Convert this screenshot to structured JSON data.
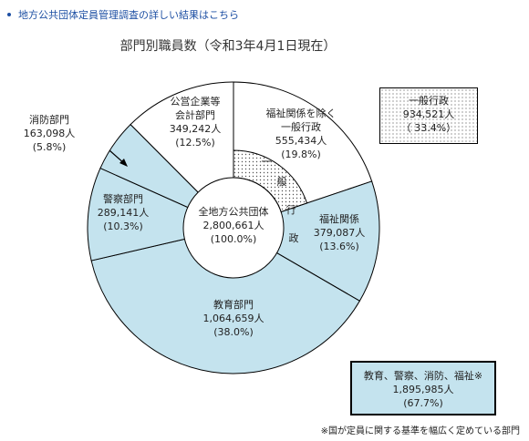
{
  "top_link": "地方公共団体定員管理調査の詳しい結果はこちら",
  "chart_data": {
    "type": "pie",
    "title": "部門別職員数（令和3年4月1日現在）",
    "center": {
      "label": "全地方公共団体",
      "value": "2,800,661人",
      "percent": "(100.0%)"
    },
    "unit": "人",
    "segments": [
      {
        "name": "福祉関係を除く一般行政",
        "value": 555434,
        "value_text": "555,434人",
        "percent_text": "(19.8%)",
        "group": "general"
      },
      {
        "name": "福祉関係",
        "value": 379087,
        "value_text": "379,087人",
        "percent_text": "(13.6%)",
        "group": "special"
      },
      {
        "name": "教育部門",
        "value": 1064659,
        "value_text": "1,064,659人",
        "percent_text": "(38.0%)",
        "group": "special"
      },
      {
        "name": "警察部門",
        "value": 289141,
        "value_text": "289,141人",
        "percent_text": "(10.3%)",
        "group": "special"
      },
      {
        "name": "消防部門",
        "value": 163098,
        "value_text": "163,098人",
        "percent_text": "(5.8%)",
        "group": "special"
      },
      {
        "name": "公営企業等会計部門",
        "value": 349242,
        "value_text": "349,242人",
        "percent_text": "(12.5%)",
        "group": "enterprise"
      }
    ],
    "inner_ring_label": "一般行政",
    "colors": {
      "special": "#c4e3ee",
      "white": "#ffffff",
      "stroke": "#000000"
    }
  },
  "summary_general": {
    "label": "一般行政",
    "value": "934,521人",
    "percent": "（ 33.4%）"
  },
  "summary_special": {
    "label": "教育、警察、消防、福祉※",
    "value": "1,895,985人",
    "percent": "(67.7%)"
  },
  "footnote": "※国が定員に関する基準を幅広く定めている部門"
}
